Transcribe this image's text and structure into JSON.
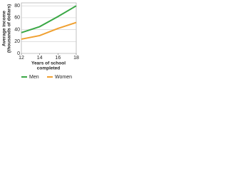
{
  "chart_data": {
    "type": "line",
    "ylabel": [
      "Average income",
      "(thousands of dollars)"
    ],
    "xlabel": [
      "Years of school",
      "completed"
    ],
    "x": [
      12,
      14,
      16,
      18
    ],
    "series": [
      {
        "name": "Men",
        "color": "#3aa845",
        "values": [
          35,
          45,
          62,
          80
        ]
      },
      {
        "name": "Women",
        "color": "#f0a030",
        "values": [
          24,
          30,
          42,
          52
        ]
      }
    ],
    "xlim": [
      12,
      18
    ],
    "xticks": [
      12,
      14,
      16,
      18
    ],
    "ylim": [
      0,
      85
    ],
    "yticks": [
      0,
      20,
      40,
      60,
      80
    ],
    "grid": true
  }
}
